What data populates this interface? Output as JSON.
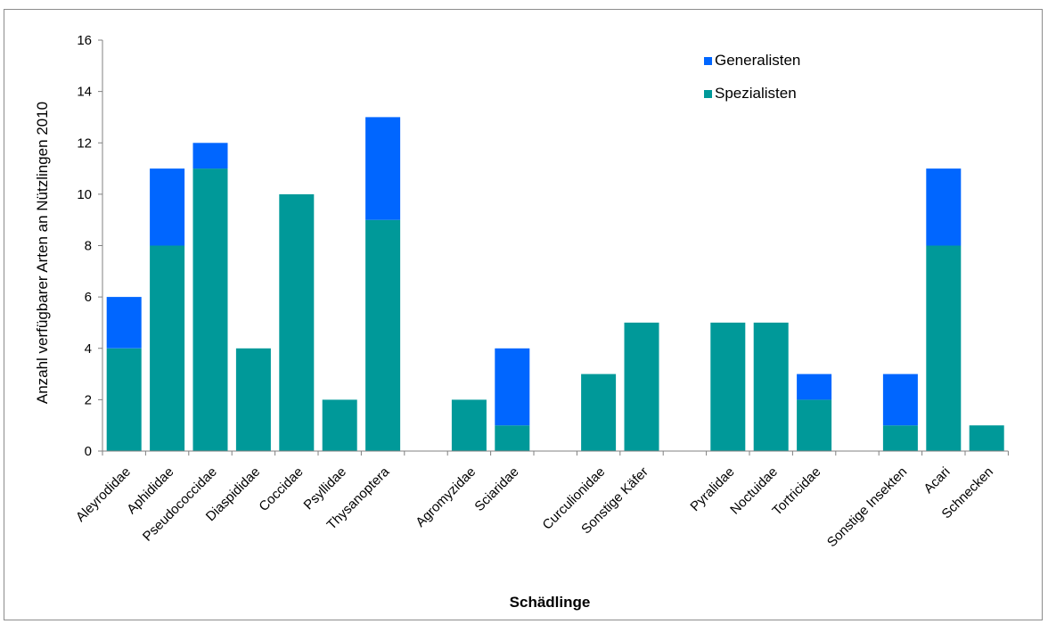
{
  "chart_data": {
    "type": "bar",
    "stacked": true,
    "categories": [
      "Aleyrodidae",
      "Aphididae",
      "Pseudococcidae",
      "Diaspididae",
      "Coccidae",
      "Psyllidae",
      "Thysanoptera",
      "",
      "Agromyzidae",
      "Sciaridae",
      "",
      "Curculionidae",
      "Sonstige Käfer",
      "",
      "Pyralidae",
      "Noctuidae",
      "Tortricidae",
      "",
      "Sonstige Insekten",
      "Acari",
      "Schnecken"
    ],
    "series": [
      {
        "name": "Spezialisten",
        "color": "#009999",
        "values": [
          4,
          8,
          11,
          4,
          10,
          2,
          9,
          0,
          2,
          1,
          0,
          3,
          5,
          0,
          5,
          5,
          2,
          0,
          1,
          8,
          1
        ]
      },
      {
        "name": "Generalisten",
        "color": "#0066ff",
        "values": [
          2,
          3,
          1,
          0,
          0,
          0,
          4,
          0,
          0,
          3,
          0,
          0,
          0,
          0,
          0,
          0,
          1,
          0,
          2,
          3,
          0
        ]
      }
    ],
    "xlabel": "Schädlinge",
    "ylabel": "Anzahl verfügbarer Arten an Nützlingen  2010",
    "ylim": [
      0,
      16
    ],
    "yticks": [
      0,
      2,
      4,
      6,
      8,
      10,
      12,
      14,
      16
    ],
    "grid": false,
    "legend": "top-right",
    "legend_order": [
      "Generalisten",
      "Spezialisten"
    ]
  }
}
